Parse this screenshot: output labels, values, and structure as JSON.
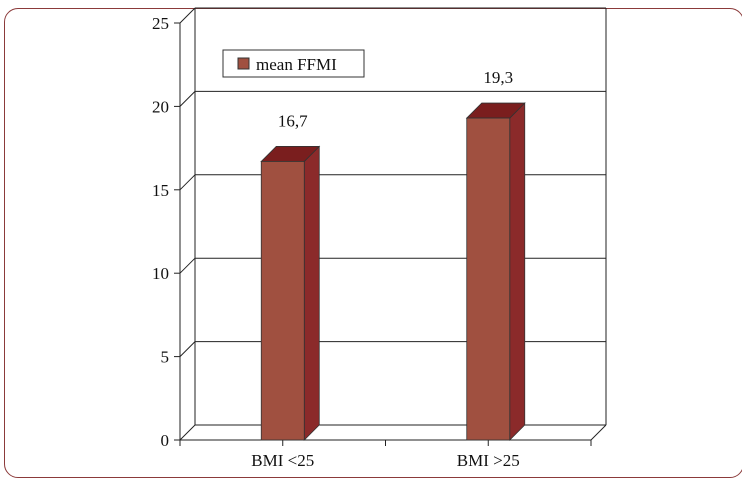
{
  "chart_data": {
    "type": "bar",
    "categories": [
      "BMI <25",
      "BMI >25"
    ],
    "series": [
      {
        "name": "mean FFMI",
        "values": [
          16.7,
          19.3
        ]
      }
    ],
    "data_labels": [
      "16,7",
      "19,3"
    ],
    "y_ticks": [
      "0",
      "5",
      "10",
      "15",
      "20",
      "25"
    ],
    "ylim": [
      0,
      25
    ],
    "grid": true,
    "legend_position": "top-left",
    "colors": {
      "bar_front": "#a05040",
      "bar_side": "#8b2a2a",
      "bar_top": "#7a1e1e",
      "frame": "#8b3a3a"
    }
  }
}
